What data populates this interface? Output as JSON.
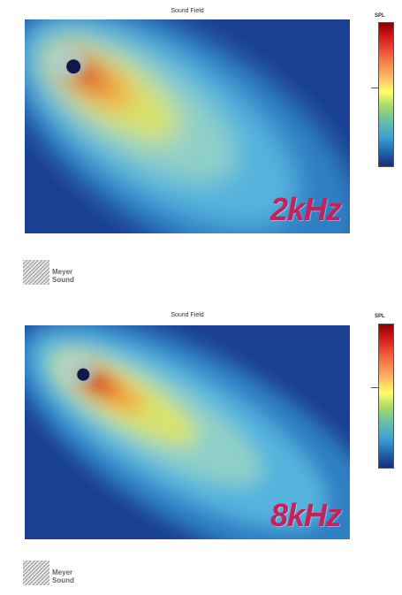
{
  "panels": [
    {
      "title": "Sound Field",
      "frequency": "2kHz",
      "colorbar_title": "SPL",
      "logo": {
        "line1": "Meyer",
        "line2": "Sound"
      }
    },
    {
      "title": "Sound Field",
      "frequency": "8kHz",
      "colorbar_title": "SPL",
      "logo": {
        "line1": "Meyer",
        "line2": "Sound"
      }
    }
  ],
  "colors": {
    "background": "#1b3f93",
    "hot": "#b5141c",
    "frequency_label": "#c2235a"
  },
  "chart_data": [
    {
      "type": "heatmap",
      "title": "Sound Field",
      "annotation": "2kHz",
      "legend": "SPL",
      "grid": false,
      "colorbar_placement": "right",
      "hotspot": {
        "x_frac": 0.15,
        "y_frac": 0.22
      },
      "beam": "wide"
    },
    {
      "type": "heatmap",
      "title": "Sound Field",
      "annotation": "8kHz",
      "legend": "SPL",
      "grid": false,
      "colorbar_placement": "right",
      "hotspot": {
        "x_frac": 0.18,
        "y_frac": 0.23
      },
      "beam": "narrow"
    }
  ]
}
